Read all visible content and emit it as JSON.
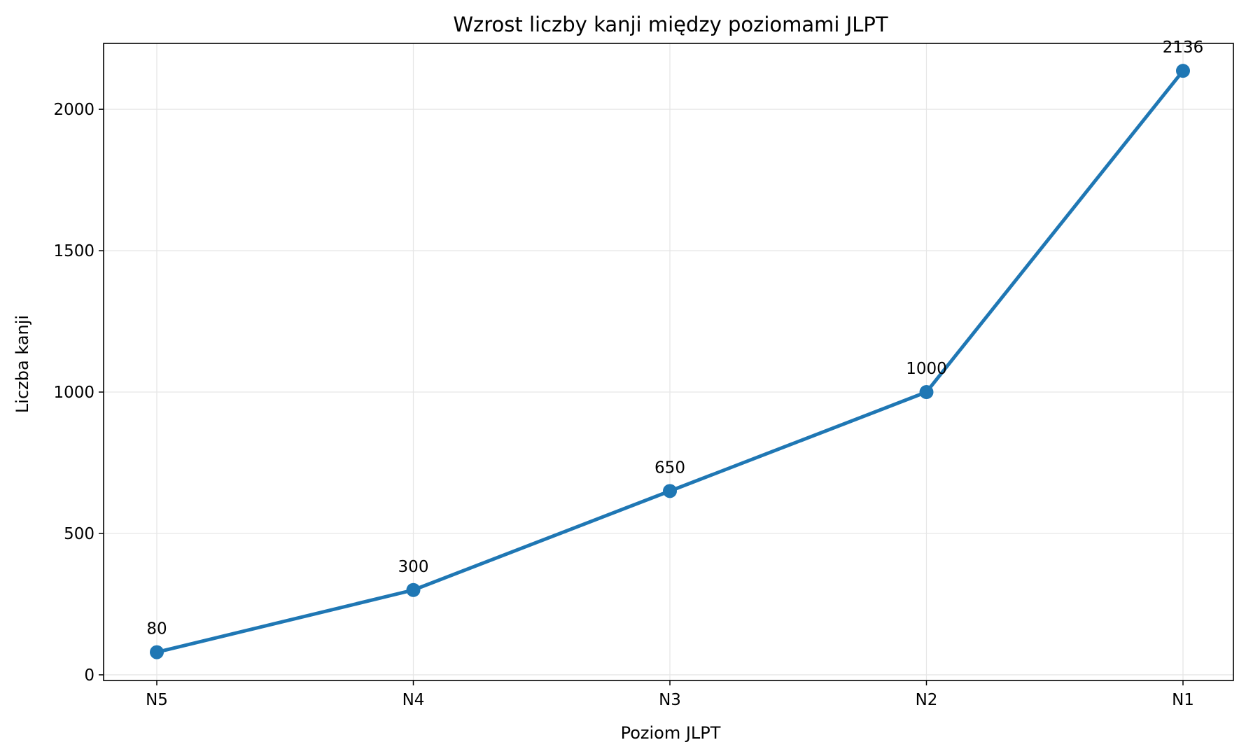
{
  "chart_data": {
    "type": "line",
    "title": "Wzrost liczby kanji między poziomami JLPT",
    "xlabel": "Poziom JLPT",
    "ylabel": "Liczba kanji",
    "categories": [
      "N5",
      "N4",
      "N3",
      "N2",
      "N1"
    ],
    "series": [
      {
        "values": [
          80,
          300,
          650,
          1000,
          2136
        ]
      }
    ],
    "data_labels": [
      "80",
      "300",
      "650",
      "1000",
      "2136"
    ],
    "ylim": [
      -20,
      2233
    ],
    "yticks": [
      0,
      500,
      1000,
      1500,
      2000
    ],
    "ytick_labels": [
      "0",
      "500",
      "1000",
      "1500",
      "2000"
    ],
    "grid": true,
    "colors": {
      "line": "#1f77b4",
      "grid": "#e6e6e6",
      "axes": "#000000"
    }
  }
}
